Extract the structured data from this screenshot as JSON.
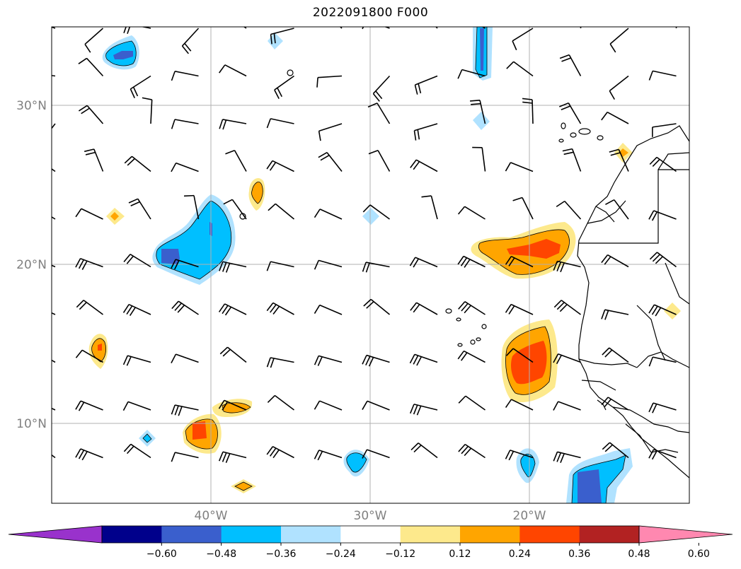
{
  "title": "2022091800 F000",
  "axes": {
    "lat_labels": [
      "30°N",
      "20°N",
      "10°N"
    ],
    "lon_labels": [
      "40°W",
      "30°W",
      "20°W"
    ]
  },
  "colorbar": {
    "extend": "both",
    "colors": [
      "#9932cc",
      "#00008b",
      "#3a5fcd",
      "#00bfff",
      "#b0e2ff",
      "#ffffff",
      "#fde98c",
      "#ffa500",
      "#ff4500",
      "#b22222",
      "#ff88b0"
    ],
    "under_color": "#9932cc",
    "over_color": "#ff88b0",
    "tick_labels": [
      "−0.60",
      "−0.48",
      "−0.36",
      "−0.24",
      "−0.12",
      "0.12",
      "0.24",
      "0.36",
      "0.48",
      "0.60"
    ]
  },
  "chart_data": {
    "type": "contour_map",
    "title": "2022091800 F000",
    "lon_range": [
      -50,
      -10
    ],
    "lat_range": [
      5,
      35
    ],
    "gridlines": true,
    "levels": [
      -0.6,
      -0.48,
      -0.36,
      -0.24,
      -0.12,
      0.12,
      0.24,
      0.36,
      0.48,
      0.6
    ],
    "features": [
      {
        "name": "negative anomaly",
        "lon": -40,
        "lat": 21,
        "min": -0.42
      },
      {
        "name": "negative anomaly",
        "lon": -45,
        "lat": 33,
        "min": -0.4
      },
      {
        "name": "negative anomaly",
        "lon": -13,
        "lat": 6,
        "min": -0.42
      },
      {
        "name": "negative anomaly",
        "lon": -23,
        "lat": 33,
        "min": -0.3
      },
      {
        "name": "positive anomaly",
        "lon": -19,
        "lat": 21,
        "max": 0.42
      },
      {
        "name": "positive anomaly",
        "lon": -19.5,
        "lat": 14,
        "max": 0.42
      },
      {
        "name": "positive anomaly",
        "lon": -41,
        "lat": 9.5,
        "max": 0.4
      },
      {
        "name": "positive anomaly",
        "lon": -37,
        "lat": 24.5,
        "max": 0.3
      },
      {
        "name": "positive anomaly",
        "lon": -47,
        "lat": 14.5,
        "max": 0.28
      }
    ],
    "wind_barbs": true
  }
}
